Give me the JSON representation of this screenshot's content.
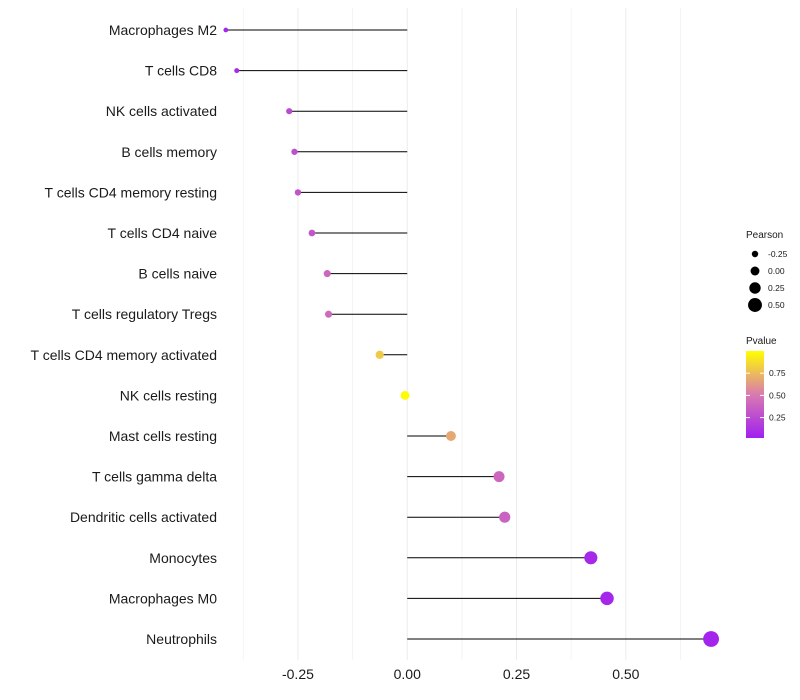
{
  "chart_data": {
    "type": "lollipop",
    "title": "",
    "xlabel": "",
    "ylabel": "",
    "xlim": [
      -0.41,
      0.72
    ],
    "xticks": [
      -0.25,
      0.0,
      0.25,
      0.5
    ],
    "xtick_labels": [
      "-0.25",
      "0.00",
      "0.25",
      "0.50"
    ],
    "baseline": 0.0,
    "grid": true,
    "categories": [
      "Macrophages M2",
      "T cells CD8",
      "NK cells activated",
      "B cells memory",
      "T cells CD4 memory resting",
      "T cells CD4 naive",
      "B cells naive",
      "T cells regulatory  Tregs",
      "T cells CD4 memory activated",
      "NK cells resting",
      "Mast cells resting",
      "T cells gamma delta",
      "Dendritic cells activated",
      "Monocytes",
      "Macrophages M0",
      "Neutrophils"
    ],
    "pearson": [
      -0.415,
      -0.39,
      -0.27,
      -0.258,
      -0.25,
      -0.218,
      -0.183,
      -0.18,
      -0.063,
      -0.005,
      0.1,
      0.21,
      0.223,
      0.42,
      0.457,
      0.695
    ],
    "pvalue": [
      0.06,
      0.08,
      0.25,
      0.28,
      0.3,
      0.32,
      0.4,
      0.42,
      0.8,
      0.99,
      0.68,
      0.4,
      0.38,
      0.07,
      0.06,
      0.04
    ],
    "legend_size": {
      "title": "Pearson",
      "values": [
        -0.25,
        0.0,
        0.25,
        0.5
      ],
      "labels": [
        "-0.25",
        "0.00",
        "0.25",
        "0.50"
      ]
    },
    "legend_color": {
      "title": "Pvalue",
      "range": [
        0.02,
        1.0
      ],
      "ticks": [
        0.25,
        0.5,
        0.75
      ],
      "labels": [
        "0.25",
        "0.50",
        "0.75"
      ],
      "low_color": "#a020f0",
      "high_color": "#ffff00"
    }
  }
}
